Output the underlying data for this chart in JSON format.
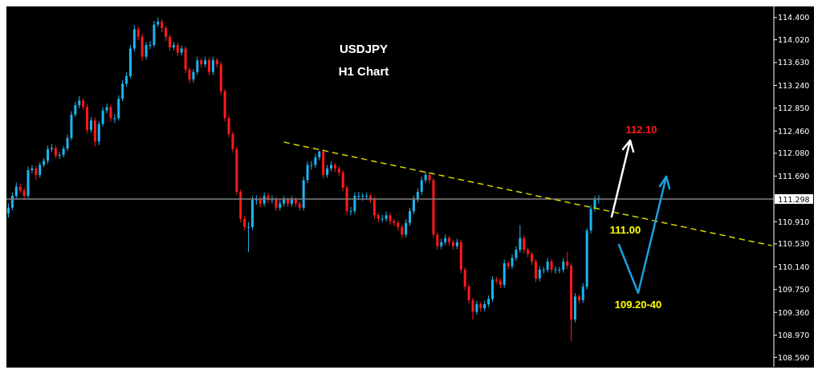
{
  "chart_data": {
    "type": "candlestick",
    "title": "USDJPY",
    "subtitle": "H1 Chart",
    "tick_labels": "y",
    "categories": [
      null,
      null,
      null,
      null,
      null,
      null,
      null,
      null,
      null,
      null,
      null,
      null,
      null,
      null,
      null,
      null,
      null,
      null,
      null,
      null,
      null,
      null,
      null,
      null,
      null,
      null,
      null,
      null,
      null,
      null,
      null,
      null,
      null,
      null,
      null,
      null,
      null,
      null,
      null,
      null,
      null,
      null,
      null,
      null,
      null,
      null,
      null,
      null,
      null,
      null,
      null,
      null,
      null,
      null,
      null,
      null,
      null,
      null,
      null,
      null,
      null,
      null,
      null,
      null,
      null,
      null,
      null,
      null,
      null,
      null,
      null,
      null,
      null,
      null,
      null,
      null,
      null,
      null,
      null,
      null,
      null,
      null,
      null,
      null,
      null,
      null,
      null,
      null,
      null,
      null,
      null,
      null,
      null,
      null,
      null,
      null,
      null,
      null,
      null,
      null,
      null,
      null,
      null,
      null,
      null,
      null,
      null,
      null,
      null,
      null,
      null,
      null,
      null,
      null,
      null,
      null,
      null,
      null,
      null,
      null,
      null,
      null,
      null,
      null,
      null,
      null,
      null,
      null,
      null,
      null,
      null,
      null,
      null,
      null,
      null,
      null,
      null,
      null,
      null,
      null,
      null,
      null,
      null,
      null,
      null,
      null,
      null,
      null,
      null,
      null,
      null,
      null,
      null,
      null,
      null,
      null,
      null,
      null,
      null,
      null,
      null,
      null,
      null,
      null,
      null,
      null,
      null,
      null,
      null,
      null,
      null,
      null,
      null,
      null,
      null,
      null,
      null,
      null,
      null,
      null,
      null,
      null,
      null,
      null,
      null,
      null,
      null,
      null,
      null,
      null,
      null,
      null,
      null,
      null,
      null
    ],
    "colors": [
      "#1eb4f0",
      "#1eb4f0",
      "#1eb4f0",
      "#ff1a1a",
      "#ff1a1a",
      "#1eb4f0",
      "#1eb4f0",
      "#ff1a1a",
      "#1eb4f0",
      "#1eb4f0",
      "#1eb4f0",
      "#1eb4f0",
      "#ff1a1a",
      "#1eb4f0",
      "#1eb4f0",
      "#1eb4f0",
      "#1eb4f0",
      "#1eb4f0",
      "#1eb4f0",
      "#ff1a1a",
      "#ff1a1a",
      "#1eb4f0",
      "#ff1a1a",
      "#1eb4f0",
      "#1eb4f0",
      "#1eb4f0",
      "#ff1a1a",
      "#1eb4f0",
      "#1eb4f0",
      "#1eb4f0",
      "#1eb4f0",
      "#1eb4f0",
      "#1eb4f0",
      "#ff1a1a",
      "#ff1a1a",
      "#1eb4f0",
      "#1eb4f0",
      "#1eb4f0",
      "#1eb4f0",
      "#ff1a1a",
      "#ff1a1a",
      "#ff1a1a",
      "#1eb4f0",
      "#ff1a1a",
      "#1eb4f0",
      "#ff1a1a",
      "#ff1a1a",
      "#1eb4f0",
      "#1eb4f0",
      "#ff1a1a",
      "#1eb4f0",
      "#ff1a1a",
      "#1eb4f0",
      "#ff1a1a",
      "#ff1a1a",
      "#ff1a1a",
      "#ff1a1a",
      "#ff1a1a",
      "#ff1a1a",
      "#ff1a1a",
      "#ff1a1a",
      "#1eb4f0",
      "#1eb4f0",
      "#1eb4f0",
      "#ff1a1a",
      "#1eb4f0",
      "#ff1a1a",
      "#1eb4f0",
      "#ff1a1a",
      "#1eb4f0",
      "#1eb4f0",
      "#ff1a1a",
      "#1eb4f0",
      "#ff1a1a",
      "#ff1a1a",
      "#1eb4f0",
      "#1eb4f0",
      "#1eb4f0",
      "#1eb4f0",
      "#1eb4f0",
      "#ff1a1a",
      "#1eb4f0",
      "#1eb4f0",
      "#ff1a1a",
      "#ff1a1a",
      "#ff1a1a",
      "#ff1a1a",
      "#1eb4f0",
      "#1eb4f0",
      "#1eb4f0",
      "#1eb4f0",
      "#1eb4f0",
      "#ff1a1a",
      "#ff1a1a",
      "#ff1a1a",
      "#1eb4f0",
      "#1eb4f0",
      "#ff1a1a",
      "#ff1a1a",
      "#ff1a1a",
      "#ff1a1a",
      "#1eb4f0",
      "#1eb4f0",
      "#1eb4f0",
      "#1eb4f0",
      "#1eb4f0",
      "#1eb4f0",
      "#ff1a1a",
      "#ff1a1a",
      "#ff1a1a",
      "#1eb4f0",
      "#1eb4f0",
      "#ff1a1a",
      "#ff1a1a",
      "#1eb4f0",
      "#ff1a1a",
      "#ff1a1a",
      "#ff1a1a",
      "#ff1a1a",
      "#1eb4f0",
      "#ff1a1a",
      "#1eb4f0",
      "#1eb4f0",
      "#1eb4f0",
      "#ff1a1a",
      "#ff1a1a",
      "#1eb4f0",
      "#ff1a1a",
      "#1eb4f0",
      "#1eb4f0",
      "#1eb4f0",
      "#ff1a1a",
      "#ff1a1a",
      "#ff1a1a",
      "#ff1a1a",
      "#1eb4f0",
      "#1eb4f0",
      "#1eb4f0",
      "#ff1a1a",
      "#1eb4f0",
      "#1eb4f0",
      "#1eb4f0",
      "#ff1a1a",
      "#ff1a1a",
      "#1eb4f0",
      "#ff1a1a",
      "#1eb4f0",
      "#1eb4f0",
      "#1eb4f0",
      "#1eb4f0",
      "#1eb4f0",
      null,
      null,
      null,
      null,
      null,
      null,
      null,
      null,
      null,
      null,
      null,
      null,
      null,
      null,
      null,
      null,
      null,
      null,
      null,
      null,
      null,
      null,
      null,
      null,
      null,
      null,
      null,
      null,
      null,
      null,
      null,
      null,
      null,
      null,
      null,
      null,
      null,
      null,
      null,
      null,
      null,
      null,
      null,
      null
    ],
    "ohlc": [
      [
        111.05,
        111.22,
        110.98,
        111.15
      ],
      [
        111.15,
        111.41,
        111.1,
        111.35
      ],
      [
        111.35,
        111.58,
        111.3,
        111.51
      ],
      [
        111.51,
        111.56,
        111.4,
        111.44
      ],
      [
        111.44,
        111.49,
        111.28,
        111.35
      ],
      [
        111.35,
        111.85,
        111.31,
        111.79
      ],
      [
        111.79,
        111.88,
        111.74,
        111.82
      ],
      [
        111.82,
        111.86,
        111.62,
        111.71
      ],
      [
        111.71,
        111.93,
        111.66,
        111.88
      ],
      [
        111.88,
        112.0,
        111.84,
        111.95
      ],
      [
        111.95,
        112.21,
        111.9,
        112.15
      ],
      [
        112.15,
        112.24,
        112.1,
        112.17
      ],
      [
        112.17,
        112.21,
        111.99,
        112.04
      ],
      [
        112.04,
        112.1,
        111.98,
        112.05
      ],
      [
        112.05,
        112.21,
        112.01,
        112.16
      ],
      [
        112.16,
        112.4,
        112.12,
        112.34
      ],
      [
        112.34,
        112.8,
        112.3,
        112.74
      ],
      [
        112.74,
        112.96,
        112.7,
        112.9
      ],
      [
        112.9,
        113.06,
        112.85,
        112.98
      ],
      [
        112.98,
        113.02,
        112.82,
        112.87
      ],
      [
        112.87,
        112.92,
        112.42,
        112.48
      ],
      [
        112.48,
        112.7,
        112.43,
        112.64
      ],
      [
        112.64,
        112.69,
        112.2,
        112.28
      ],
      [
        112.28,
        112.63,
        112.22,
        112.58
      ],
      [
        112.58,
        112.87,
        112.54,
        112.81
      ],
      [
        112.81,
        112.93,
        112.76,
        112.87
      ],
      [
        112.87,
        112.91,
        112.62,
        112.68
      ],
      [
        112.68,
        112.75,
        112.6,
        112.68
      ],
      [
        112.68,
        113.07,
        112.64,
        113.01
      ],
      [
        113.01,
        113.33,
        112.97,
        113.27
      ],
      [
        113.27,
        113.46,
        113.22,
        113.4
      ],
      [
        113.4,
        113.93,
        113.36,
        113.87
      ],
      [
        113.87,
        114.27,
        113.82,
        114.2
      ],
      [
        114.2,
        114.25,
        114.01,
        114.07
      ],
      [
        114.07,
        114.12,
        113.66,
        113.73
      ],
      [
        113.73,
        113.98,
        113.68,
        113.93
      ],
      [
        113.93,
        114.0,
        113.86,
        113.93
      ],
      [
        113.93,
        114.34,
        113.89,
        114.28
      ],
      [
        114.28,
        114.4,
        114.24,
        114.33
      ],
      [
        114.33,
        114.37,
        114.15,
        114.22
      ],
      [
        114.22,
        114.26,
        114.0,
        114.07
      ],
      [
        114.07,
        114.11,
        113.83,
        113.89
      ],
      [
        113.89,
        113.98,
        113.84,
        113.93
      ],
      [
        113.93,
        113.97,
        113.74,
        113.8
      ],
      [
        113.8,
        113.92,
        113.75,
        113.87
      ],
      [
        113.87,
        113.91,
        113.45,
        113.51
      ],
      [
        113.51,
        113.55,
        113.28,
        113.34
      ],
      [
        113.34,
        113.52,
        113.29,
        113.47
      ],
      [
        113.47,
        113.73,
        113.42,
        113.67
      ],
      [
        113.67,
        113.71,
        113.54,
        113.6
      ],
      [
        113.6,
        113.73,
        113.55,
        113.67
      ],
      [
        113.67,
        113.71,
        113.41,
        113.47
      ],
      [
        113.47,
        113.73,
        113.42,
        113.67
      ],
      [
        113.67,
        113.71,
        113.54,
        113.6
      ],
      [
        113.6,
        113.64,
        113.08,
        113.14
      ],
      [
        113.14,
        113.18,
        112.62,
        112.68
      ],
      [
        112.68,
        112.72,
        112.35,
        112.41
      ],
      [
        112.41,
        112.45,
        112.09,
        112.15
      ],
      [
        112.15,
        112.19,
        111.36,
        111.42
      ],
      [
        111.42,
        111.46,
        110.9,
        110.96
      ],
      [
        110.96,
        111.01,
        110.76,
        110.82
      ],
      [
        110.82,
        110.9,
        110.39,
        110.82
      ],
      [
        110.82,
        111.35,
        110.77,
        111.29
      ],
      [
        111.29,
        111.36,
        111.2,
        111.29
      ],
      [
        111.29,
        111.34,
        111.16,
        111.22
      ],
      [
        111.22,
        111.41,
        111.17,
        111.35
      ],
      [
        111.35,
        111.4,
        111.23,
        111.29
      ],
      [
        111.29,
        111.36,
        111.22,
        111.29
      ],
      [
        111.29,
        111.33,
        111.09,
        111.15
      ],
      [
        111.15,
        111.28,
        111.1,
        111.22
      ],
      [
        111.22,
        111.35,
        111.17,
        111.29
      ],
      [
        111.29,
        111.33,
        111.16,
        111.22
      ],
      [
        111.22,
        111.35,
        111.17,
        111.29
      ],
      [
        111.29,
        111.33,
        111.16,
        111.22
      ],
      [
        111.22,
        111.26,
        111.09,
        111.15
      ],
      [
        111.15,
        111.68,
        111.1,
        111.62
      ],
      [
        111.62,
        111.94,
        111.57,
        111.88
      ],
      [
        111.88,
        111.95,
        111.8,
        111.88
      ],
      [
        111.88,
        112.07,
        111.83,
        112.01
      ],
      [
        112.01,
        112.13,
        111.96,
        112.11
      ],
      [
        112.11,
        112.15,
        111.65,
        111.71
      ],
      [
        111.71,
        111.88,
        111.66,
        111.82
      ],
      [
        111.82,
        111.94,
        111.77,
        111.88
      ],
      [
        111.88,
        111.92,
        111.76,
        111.82
      ],
      [
        111.82,
        111.86,
        111.69,
        111.75
      ],
      [
        111.75,
        111.79,
        111.43,
        111.49
      ],
      [
        111.49,
        111.53,
        111.03,
        111.09
      ],
      [
        111.09,
        111.16,
        111.02,
        111.09
      ],
      [
        111.09,
        111.41,
        111.04,
        111.35
      ],
      [
        111.35,
        111.42,
        111.28,
        111.35
      ],
      [
        111.35,
        111.4,
        111.27,
        111.35
      ],
      [
        111.35,
        111.41,
        111.29,
        111.35
      ],
      [
        111.35,
        111.39,
        111.23,
        111.29
      ],
      [
        111.29,
        111.33,
        110.96,
        111.02
      ],
      [
        111.02,
        111.06,
        110.9,
        110.96
      ],
      [
        110.96,
        111.03,
        110.9,
        110.96
      ],
      [
        110.96,
        111.08,
        110.91,
        111.02
      ],
      [
        111.02,
        111.06,
        110.86,
        110.92
      ],
      [
        110.92,
        110.96,
        110.83,
        110.89
      ],
      [
        110.89,
        110.93,
        110.76,
        110.82
      ],
      [
        110.82,
        110.86,
        110.63,
        110.69
      ],
      [
        110.69,
        110.95,
        110.64,
        110.89
      ],
      [
        110.89,
        111.15,
        110.84,
        111.09
      ],
      [
        111.09,
        111.35,
        111.04,
        111.29
      ],
      [
        111.29,
        111.48,
        111.24,
        111.42
      ],
      [
        111.42,
        111.68,
        111.37,
        111.62
      ],
      [
        111.62,
        111.77,
        111.57,
        111.71
      ],
      [
        111.71,
        111.75,
        111.56,
        111.62
      ],
      [
        111.62,
        111.66,
        110.63,
        110.69
      ],
      [
        110.69,
        110.73,
        110.43,
        110.49
      ],
      [
        110.49,
        110.62,
        110.44,
        110.56
      ],
      [
        110.56,
        110.69,
        110.51,
        110.63
      ],
      [
        110.63,
        110.67,
        110.5,
        110.56
      ],
      [
        110.56,
        110.6,
        110.43,
        110.49
      ],
      [
        110.49,
        110.62,
        110.44,
        110.56
      ],
      [
        110.56,
        110.6,
        110.03,
        110.09
      ],
      [
        110.09,
        110.13,
        109.74,
        109.8
      ],
      [
        109.8,
        109.84,
        109.51,
        109.57
      ],
      [
        109.57,
        109.61,
        109.24,
        109.37
      ],
      [
        109.37,
        109.56,
        109.32,
        109.5
      ],
      [
        109.5,
        109.54,
        109.37,
        109.43
      ],
      [
        109.43,
        109.56,
        109.38,
        109.5
      ],
      [
        109.5,
        109.65,
        109.45,
        109.59
      ],
      [
        109.59,
        109.98,
        109.54,
        109.92
      ],
      [
        109.92,
        109.97,
        109.85,
        109.9
      ],
      [
        109.9,
        109.94,
        109.77,
        109.83
      ],
      [
        109.83,
        110.26,
        109.78,
        110.2
      ],
      [
        110.2,
        110.24,
        110.09,
        110.15
      ],
      [
        110.15,
        110.35,
        110.1,
        110.29
      ],
      [
        110.29,
        110.49,
        110.24,
        110.43
      ],
      [
        110.43,
        110.85,
        110.38,
        110.63
      ],
      [
        110.63,
        110.67,
        110.37,
        110.43
      ],
      [
        110.43,
        110.47,
        110.3,
        110.36
      ],
      [
        110.36,
        110.4,
        110.17,
        110.23
      ],
      [
        110.23,
        110.27,
        109.88,
        109.94
      ],
      [
        109.94,
        110.15,
        109.89,
        110.09
      ],
      [
        110.09,
        110.14,
        110.02,
        110.09
      ],
      [
        110.09,
        110.29,
        110.04,
        110.23
      ],
      [
        110.23,
        110.27,
        110.03,
        110.09
      ],
      [
        110.09,
        110.15,
        110.02,
        110.09
      ],
      [
        110.09,
        110.14,
        110.03,
        110.09
      ],
      [
        110.09,
        110.29,
        110.04,
        110.23
      ],
      [
        110.23,
        110.39,
        110.1,
        110.16
      ],
      [
        110.16,
        110.2,
        108.87,
        109.24
      ],
      [
        109.24,
        109.69,
        109.19,
        109.63
      ],
      [
        109.63,
        109.67,
        109.51,
        109.57
      ],
      [
        109.57,
        109.86,
        109.52,
        109.8
      ],
      [
        109.8,
        110.8,
        109.75,
        110.76
      ],
      [
        110.76,
        111.19,
        110.71,
        111.13
      ],
      [
        111.13,
        111.35,
        111.08,
        111.29
      ],
      [
        111.29,
        111.37,
        111.22,
        111.31
      ],
      null,
      null,
      null,
      null,
      null,
      null,
      null,
      null,
      null,
      null,
      null,
      null,
      null,
      null,
      null,
      null,
      null,
      null,
      null,
      null,
      null,
      null,
      null,
      null,
      null,
      null,
      null,
      null,
      null,
      null,
      null,
      null,
      null,
      null,
      null,
      null,
      null,
      null,
      null,
      null,
      null,
      null,
      null,
      null
    ],
    "series": [
      {
        "type": "line",
        "color": "#d4d400",
        "line_style": "dashed",
        "values": [
          null,
          null,
          null,
          null,
          null,
          null,
          null,
          null,
          null,
          null,
          null,
          null,
          null,
          null,
          null,
          null,
          null,
          null,
          null,
          null,
          null,
          null,
          null,
          null,
          null,
          null,
          null,
          null,
          null,
          null,
          null,
          null,
          null,
          null,
          null,
          null,
          null,
          null,
          null,
          null,
          null,
          null,
          null,
          null,
          null,
          null,
          null,
          null,
          null,
          null,
          null,
          null,
          null,
          null,
          null,
          null,
          null,
          null,
          null,
          null,
          null,
          null,
          null,
          null,
          null,
          null,
          null,
          null,
          null,
          null,
          112.27,
          null,
          null,
          null,
          null,
          null,
          null,
          null,
          null,
          null,
          null,
          null,
          null,
          null,
          null,
          null,
          null,
          null,
          null,
          null,
          null,
          null,
          null,
          null,
          null,
          null,
          null,
          null,
          null,
          null,
          null,
          null,
          null,
          null,
          null,
          null,
          null,
          null,
          null,
          null,
          null,
          null,
          null,
          null,
          null,
          null,
          null,
          null,
          null,
          null,
          null,
          null,
          null,
          null,
          null,
          null,
          null,
          null,
          null,
          null,
          null,
          null,
          null,
          null,
          null,
          null,
          null,
          null,
          null,
          null,
          null,
          null,
          null,
          null,
          null,
          null,
          null,
          null,
          null,
          null,
          null,
          null,
          null,
          null,
          null,
          null,
          null,
          null,
          null,
          null,
          null,
          null,
          null,
          null,
          null,
          null,
          null,
          null,
          null,
          null,
          null,
          null,
          null,
          null,
          null,
          null,
          null,
          null,
          null,
          null,
          null,
          null,
          null,
          null,
          null,
          null,
          null,
          null,
          null,
          null,
          null,
          null,
          null,
          null,
          110.5
        ]
      }
    ],
    "ylim": [
      108.43,
      114.59
    ],
    "yticks": [
      {
        "value": 108.59,
        "label": "108.590"
      },
      {
        "value": 108.97,
        "label": "108.970"
      },
      {
        "value": 109.36,
        "label": "109.360"
      },
      {
        "value": 109.75,
        "label": "109.750"
      },
      {
        "value": 110.14,
        "label": "110.140"
      },
      {
        "value": 110.53,
        "label": "110.530"
      },
      {
        "value": 110.91,
        "label": "110.910"
      },
      {
        "value": 111.69,
        "label": "111.690"
      },
      {
        "value": 112.08,
        "label": "112.080"
      },
      {
        "value": 112.46,
        "label": "112.460"
      },
      {
        "value": 112.85,
        "label": "112.850"
      },
      {
        "value": 113.24,
        "label": "113.240"
      },
      {
        "value": 113.63,
        "label": "113.630"
      },
      {
        "value": 114.02,
        "label": "114.020"
      },
      {
        "value": 114.4,
        "label": "114.400"
      }
    ],
    "ref_lines": [
      {
        "axis": "y",
        "value": 111.298,
        "label": "111.298",
        "color": "#808080"
      }
    ],
    "annotations": [
      "112.10",
      "111.00",
      "109.20-40"
    ]
  }
}
